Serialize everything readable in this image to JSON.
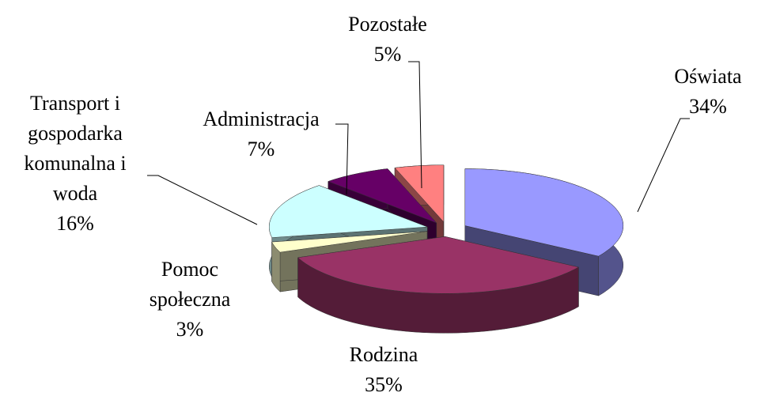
{
  "chart_data": {
    "type": "pie",
    "categories": [
      "Oświata",
      "Rodzina",
      "Pomoc społeczna",
      "Transport i gospodarka komunalna i woda",
      "Administracja",
      "Pozostałe"
    ],
    "values": [
      34,
      35,
      3,
      16,
      7,
      5
    ],
    "value_labels": [
      "34%",
      "35%",
      "3%",
      "16%",
      "7%",
      "5%"
    ],
    "colors": [
      "#9999ff",
      "#993366",
      "#ffffcc",
      "#ccffff",
      "#660066",
      "#ff8080"
    ]
  }
}
